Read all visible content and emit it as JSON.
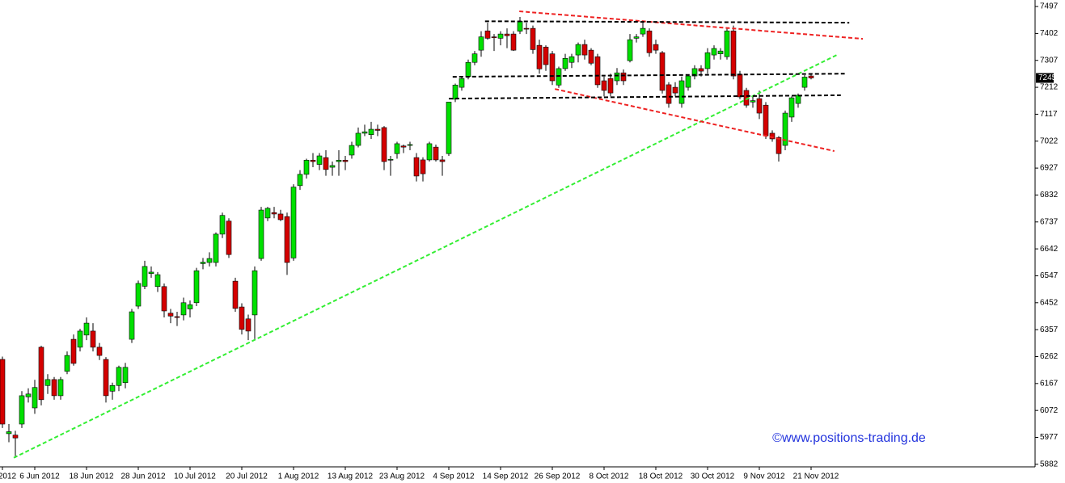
{
  "chart_data": {
    "type": "candlestick",
    "categories": [
      "2012",
      null,
      null,
      null,
      null,
      "6 Jun 2012",
      null,
      null,
      null,
      null,
      null,
      null,
      null,
      "18 Jun 2012",
      null,
      null,
      null,
      null,
      null,
      null,
      null,
      "28 Jun 2012",
      null,
      null,
      null,
      null,
      null,
      null,
      null,
      "10 Jul 2012",
      null,
      null,
      null,
      null,
      null,
      null,
      null,
      "20 Jul 2012",
      null,
      null,
      null,
      null,
      null,
      null,
      null,
      "1 Aug 2012",
      null,
      null,
      null,
      null,
      null,
      null,
      null,
      "13 Aug 2012",
      null,
      null,
      null,
      null,
      null,
      null,
      null,
      "23 Aug 2012",
      null,
      null,
      null,
      null,
      null,
      null,
      null,
      "4 Sep 2012",
      null,
      null,
      null,
      null,
      null,
      null,
      null,
      "14 Sep 2012",
      null,
      null,
      null,
      null,
      null,
      null,
      null,
      "26 Sep 2012",
      null,
      null,
      null,
      null,
      null,
      null,
      null,
      "8 Oct 2012",
      null,
      null,
      null,
      null,
      null,
      null,
      null,
      "18 Oct 2012",
      null,
      null,
      null,
      null,
      null,
      null,
      null,
      "30 Oct 2012",
      null,
      null,
      null,
      null,
      null,
      null,
      null,
      "9 Nov 2012",
      null,
      null,
      null,
      null,
      null,
      null,
      null,
      "21 Nov 2012"
    ],
    "open": [
      6252,
      5990,
      5985,
      6024,
      6120,
      6081,
      6295,
      6160,
      6181,
      6124,
      6210,
      6323,
      6295,
      6338,
      6352,
      6295,
      6252,
      6140,
      6160,
      6170,
      6323,
      6440,
      6510,
      6555,
      6509,
      6509,
      6415,
      6403,
      6409,
      6430,
      6452,
      6590,
      6594,
      6594,
      6694,
      6740,
      6528,
      6437,
      6395,
      6409,
      6608,
      6751,
      6770,
      6765,
      6756,
      6610,
      6865,
      6905,
      6955,
      6940,
      6964,
      6930,
      6950,
      6955,
      6973,
      7007,
      7050,
      7045,
      7064,
      7070,
      6955,
      6978,
      7005,
      7007,
      6964,
      6956,
      6956,
      7001,
      6956,
      6978,
      7170,
      7212,
      7250,
      7300,
      7343,
      7411,
      7390,
      7385,
      7400,
      7400,
      7410,
      7420,
      7420,
      7360,
      7354,
      7330,
      7220,
      7278,
      7300,
      7326,
      7363,
      7343,
      7320,
      7235,
      7243,
      7235,
      7263,
      7306,
      7385,
      7400,
      7411,
      7363,
      7334,
      7221,
      7212,
      7155,
      7212,
      7252,
      7278,
      7278,
      7326,
      7330,
      7320,
      7411,
      7258,
      7201,
      7160,
      7172,
      7149,
      7050,
      7035,
      7007,
      7107,
      7155,
      7212,
      7252
    ],
    "high": [
      6262,
      6024,
      6000,
      6140,
      6150,
      6180,
      6300,
      6200,
      6190,
      6190,
      6280,
      6340,
      6360,
      6400,
      6380,
      6310,
      6260,
      6170,
      6230,
      6240,
      6430,
      6530,
      6600,
      6580,
      6560,
      6520,
      6430,
      6420,
      6470,
      6460,
      6575,
      6610,
      6630,
      6700,
      6770,
      6750,
      6540,
      6450,
      6410,
      6580,
      6790,
      6790,
      6790,
      6780,
      6770,
      6870,
      6920,
      6960,
      6980,
      6980,
      6990,
      6950,
      6990,
      6970,
      7020,
      7070,
      7080,
      7090,
      7080,
      7075,
      6970,
      7020,
      7010,
      7020,
      6980,
      6965,
      7020,
      7010,
      6970,
      7160,
      7225,
      7250,
      7310,
      7340,
      7410,
      7440,
      7400,
      7410,
      7420,
      7410,
      7460,
      7440,
      7430,
      7380,
      7360,
      7340,
      7285,
      7330,
      7330,
      7370,
      7380,
      7350,
      7330,
      7250,
      7260,
      7280,
      7275,
      7400,
      7400,
      7440,
      7420,
      7380,
      7340,
      7230,
      7230,
      7250,
      7255,
      7290,
      7290,
      7350,
      7360,
      7350,
      7420,
      7430,
      7270,
      7210,
      7180,
      7200,
      7160,
      7060,
      7040,
      7130,
      7180,
      7190,
      7255,
      7260
    ],
    "low": [
      6010,
      5960,
      5905,
      6010,
      6100,
      6060,
      6090,
      6130,
      6110,
      6110,
      6200,
      6230,
      6280,
      6320,
      6280,
      6250,
      6100,
      6110,
      6140,
      6150,
      6310,
      6430,
      6500,
      6540,
      6490,
      6400,
      6380,
      6370,
      6390,
      6400,
      6440,
      6570,
      6580,
      6580,
      6680,
      6610,
      6420,
      6340,
      6320,
      6320,
      6600,
      6740,
      6750,
      6740,
      6550,
      6600,
      6850,
      6890,
      6930,
      6920,
      6900,
      6900,
      6900,
      6920,
      6960,
      7000,
      7040,
      7030,
      7040,
      6920,
      6900,
      6960,
      6980,
      6990,
      6880,
      6880,
      6950,
      6950,
      6900,
      6970,
      7160,
      7200,
      7240,
      7290,
      7320,
      7380,
      7340,
      7360,
      7350,
      7340,
      7400,
      7400,
      7330,
      7260,
      7270,
      7220,
      7210,
      7270,
      7280,
      7300,
      7310,
      7290,
      7210,
      7180,
      7180,
      7220,
      7220,
      7300,
      7370,
      7390,
      7320,
      7330,
      7190,
      7140,
      7180,
      7140,
      7200,
      7240,
      7250,
      7260,
      7310,
      7310,
      7310,
      7240,
      7170,
      7140,
      7140,
      7100,
      7030,
      7020,
      6950,
      6990,
      7090,
      7140,
      7200,
      7240
    ],
    "close": [
      6024,
      5997,
      5975,
      6124,
      6130,
      6153,
      6110,
      6181,
      6124,
      6181,
      6266,
      6238,
      6352,
      6380,
      6295,
      6266,
      6124,
      6160,
      6224,
      6224,
      6420,
      6520,
      6580,
      6560,
      6551,
      6423,
      6405,
      6400,
      6452,
      6445,
      6565,
      6595,
      6608,
      6694,
      6760,
      6622,
      6432,
      6358,
      6352,
      6565,
      6779,
      6785,
      6765,
      6745,
      6594,
      6860,
      6905,
      6955,
      6950,
      6970,
      6922,
      6936,
      6955,
      6950,
      7007,
      7050,
      7055,
      7064,
      7060,
      6950,
      6958,
      7013,
      7001,
      7010,
      6899,
      6907,
      7013,
      6956,
      6950,
      7160,
      7220,
      7243,
      7300,
      7330,
      7390,
      7385,
      7388,
      7400,
      7394,
      7343,
      7445,
      7418,
      7345,
      7277,
      7292,
      7235,
      7278,
      7314,
      7320,
      7363,
      7326,
      7297,
      7221,
      7201,
      7192,
      7263,
      7235,
      7380,
      7390,
      7420,
      7334,
      7343,
      7201,
      7155,
      7192,
      7235,
      7252,
      7278,
      7269,
      7334,
      7349,
      7340,
      7411,
      7252,
      7178,
      7149,
      7165,
      7121,
      7041,
      7030,
      6978,
      7121,
      7175,
      7184,
      7248,
      7245
    ],
    "up_color": "#00e000",
    "down_color": "#d40000",
    "ylim": [
      5873,
      7520
    ],
    "yticks": [
      5882,
      5977,
      6072,
      6167,
      6262,
      6357,
      6452,
      6547,
      6642,
      6737,
      6832,
      6927,
      7022,
      7117,
      7212,
      7307,
      7402,
      7497
    ],
    "trend_lines": [
      {
        "color": "#33ee33",
        "points": [
          [
            1.75,
            5905
          ],
          [
            129.25,
            7329
          ]
        ]
      },
      {
        "color": "#ee2222",
        "points": [
          [
            79.9,
            7480
          ],
          [
            133,
            7383
          ]
        ]
      },
      {
        "color": "#ee2222",
        "points": [
          [
            85.4,
            7206
          ],
          [
            128.6,
            6987
          ]
        ]
      },
      {
        "color": "#000000",
        "points": [
          [
            74.6,
            7445
          ],
          [
            130.9,
            7440
          ]
        ]
      },
      {
        "color": "#000000",
        "points": [
          [
            69.6,
            7249
          ],
          [
            130.2,
            7260
          ]
        ]
      },
      {
        "color": "#000000",
        "points": [
          [
            69,
            7172
          ],
          [
            129.6,
            7184
          ]
        ]
      }
    ],
    "watermark": "©www.positions-trading.de"
  }
}
